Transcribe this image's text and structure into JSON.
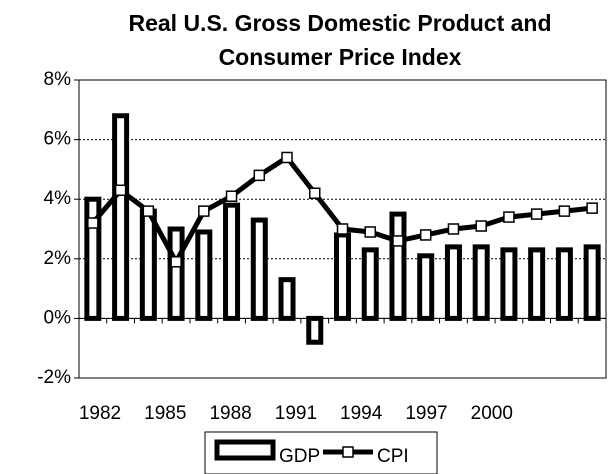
{
  "chart_data": {
    "type": "bar-line",
    "title": "Real U.S. Gross Domestic Product and Consumer Price Index",
    "categories": [
      null,
      null,
      null,
      null,
      null,
      null,
      null,
      null,
      null,
      null,
      null,
      null,
      null,
      null,
      null,
      null,
      null,
      null,
      null
    ],
    "xlabels": [
      "1982",
      "1985",
      "1988",
      "1991",
      "1994",
      "1997",
      "2000"
    ],
    "series": [
      {
        "name": "GDP",
        "type": "bar",
        "color": "#000000",
        "values": [
          4.0,
          6.8,
          3.6,
          3.0,
          2.9,
          3.8,
          3.3,
          1.3,
          -0.8,
          2.8,
          2.3,
          3.5,
          2.1,
          2.4,
          2.4,
          2.3,
          2.3,
          2.3,
          2.4
        ]
      },
      {
        "name": "CPI",
        "type": "line",
        "color": "#000000",
        "values": [
          3.2,
          4.3,
          3.6,
          1.9,
          3.6,
          4.1,
          4.8,
          5.4,
          4.2,
          3.0,
          2.9,
          2.6,
          2.8,
          3.0,
          3.1,
          3.4,
          3.5,
          3.6,
          3.7
        ]
      }
    ],
    "ylim": [
      -2,
      8
    ],
    "yticks": [
      {
        "value": -2,
        "label": "-2%"
      },
      {
        "value": 0,
        "label": "0%"
      },
      {
        "value": 2,
        "label": "2%"
      },
      {
        "value": 4,
        "label": "4%"
      },
      {
        "value": 6,
        "label": "6%"
      },
      {
        "value": 8,
        "label": "8%"
      }
    ],
    "grid": true,
    "legend": "bottom"
  }
}
